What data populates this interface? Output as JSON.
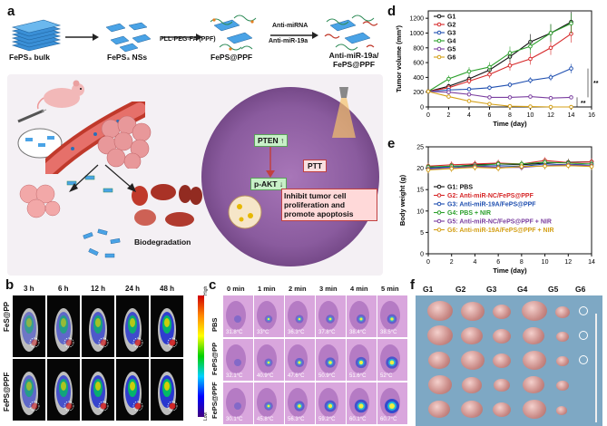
{
  "panel_labels": {
    "a": "a",
    "b": "b",
    "c": "c",
    "d": "d",
    "e": "e",
    "f": "f"
  },
  "panel_a": {
    "steps": [
      "FePS₃ bulk",
      "FePS₃ NSs",
      "FePS@PPF",
      "Anti-miR-19a/ FePS@PPF"
    ],
    "arrow1_label": "PLL-PEG-FA (PPF)",
    "arrow2_top": "Anti-miRNA",
    "arrow2_bottom": "Anti-miR-19a",
    "pten": "PTEN ↑",
    "pakt": "p-AKT ↓",
    "ptt": "PTT",
    "effect": "Inhibit tumor cell proliferation and promote apoptosis",
    "biodeg": "Biodegradation"
  },
  "panel_b": {
    "times": [
      "3 h",
      "6 h",
      "12 h",
      "24 h",
      "48 h"
    ],
    "rows": [
      "FeS@PP",
      "FePS@PPF"
    ],
    "scale_high": "High",
    "scale_low": "Low"
  },
  "panel_c": {
    "times": [
      "0 min",
      "1 min",
      "2 min",
      "3 min",
      "4 min",
      "5 min"
    ],
    "rows": [
      {
        "label": "PBS",
        "temps": [
          "31.8°C",
          "33°C",
          "36.3°C",
          "37.8°C",
          "38.4°C",
          "38.5°C"
        ]
      },
      {
        "label": "FePS@PP",
        "temps": [
          "32.1°C",
          "40.9°C",
          "47.6°C",
          "50.9°C",
          "51.6°C",
          "52°C"
        ]
      },
      {
        "label": "FePS@PPF",
        "temps": [
          "30.1°C",
          "45.8°C",
          "56.3°C",
          "59.2°C",
          "60.1°C",
          "60.7°C"
        ]
      }
    ]
  },
  "panel_f": {
    "groups": [
      "G1",
      "G2",
      "G3",
      "G4",
      "G5",
      "G6"
    ]
  },
  "chart_data": [
    {
      "type": "line",
      "panel": "d",
      "xlabel": "Time (day)",
      "ylabel": "Tumor volume (mm³)",
      "xlim": [
        0,
        16
      ],
      "ylim": [
        0,
        1300
      ],
      "xticks": [
        0,
        2,
        4,
        6,
        8,
        10,
        12,
        14,
        16
      ],
      "yticks": [
        0,
        200,
        400,
        600,
        800,
        1000,
        1200
      ],
      "x": [
        0,
        2,
        4,
        6,
        8,
        10,
        12,
        14
      ],
      "series": [
        {
          "name": "G1",
          "color": "#111111",
          "values": [
            210,
            280,
            380,
            500,
            680,
            880,
            1000,
            1150
          ]
        },
        {
          "name": "G2",
          "color": "#d62728",
          "values": [
            210,
            260,
            350,
            440,
            560,
            650,
            800,
            990
          ]
        },
        {
          "name": "G3",
          "color": "#1f4fb0",
          "values": [
            210,
            230,
            240,
            260,
            300,
            360,
            400,
            520
          ]
        },
        {
          "name": "G4",
          "color": "#2ca02c",
          "values": [
            210,
            380,
            480,
            540,
            730,
            820,
            1000,
            1130
          ]
        },
        {
          "name": "G5",
          "color": "#7b3fa0",
          "values": [
            210,
            200,
            170,
            130,
            130,
            140,
            120,
            130
          ]
        },
        {
          "name": "G6",
          "color": "#d4a017",
          "values": [
            210,
            140,
            80,
            40,
            10,
            5,
            0,
            0
          ]
        }
      ],
      "annotations": [
        "**",
        "**"
      ],
      "legend": "top-left"
    },
    {
      "type": "line",
      "panel": "e",
      "xlabel": "Time (day)",
      "ylabel": "Body weight (g)",
      "xlim": [
        0,
        14
      ],
      "ylim": [
        0,
        25
      ],
      "xticks": [
        0,
        2,
        4,
        6,
        8,
        10,
        12,
        14
      ],
      "yticks": [
        0,
        5,
        10,
        15,
        20,
        25
      ],
      "x": [
        0,
        2,
        4,
        6,
        8,
        10,
        12,
        14
      ],
      "series": [
        {
          "name": "G1: PBS",
          "color": "#111111",
          "values": [
            20.2,
            20.4,
            20.8,
            21.0,
            20.8,
            21.2,
            21.4,
            21.5
          ]
        },
        {
          "name": "G2: Anti-miR-NC/FePS@PPF",
          "color": "#d62728",
          "values": [
            20.5,
            20.8,
            21.0,
            21.2,
            21.0,
            21.8,
            21.3,
            21.5
          ]
        },
        {
          "name": "G3: Anti-miR-19A/FePS@PPF",
          "color": "#1f4fb0",
          "values": [
            20.0,
            20.3,
            20.5,
            20.6,
            20.4,
            21.0,
            20.8,
            21.0
          ]
        },
        {
          "name": "G4: PBS + NIR",
          "color": "#2ca02c",
          "values": [
            20.3,
            20.5,
            20.6,
            21.0,
            21.0,
            21.4,
            21.2,
            21.0
          ]
        },
        {
          "name": "G5: Anti-miR-NC/FePS@PPF + NIR",
          "color": "#7b3fa0",
          "values": [
            19.8,
            20.0,
            20.4,
            20.2,
            20.2,
            20.6,
            20.8,
            20.6
          ]
        },
        {
          "name": "G6: Anti-miR-19A/FePS@PPF + NIR",
          "color": "#d4a017",
          "values": [
            19.6,
            19.9,
            20.2,
            20.0,
            20.4,
            20.5,
            20.6,
            20.4
          ]
        }
      ],
      "legend": "bottom-left"
    }
  ]
}
